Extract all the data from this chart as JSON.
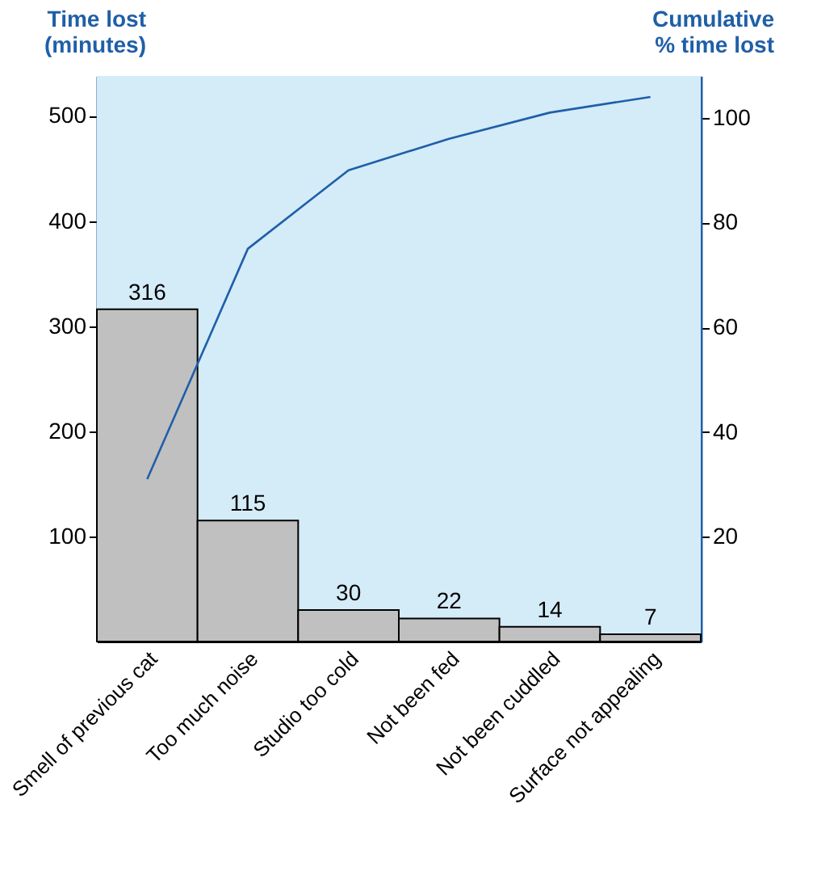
{
  "chart_data": {
    "type": "bar",
    "ylabel": "Time lost\n(minutes)",
    "y2label": "Cumulative\n% time lost",
    "categories": [
      "Smell of previous cat",
      "Too much noise",
      "Studio too cold",
      "Not been fed",
      "Not been cuddled",
      "Surface not appealing"
    ],
    "series": [
      {
        "color": "#c0c0c0",
        "values": [
          316,
          115,
          30,
          22,
          14,
          7
        ],
        "value_labels": [
          "316",
          "115",
          "30",
          "22",
          "14",
          "7"
        ]
      },
      {
        "type": "line",
        "axis": "y2",
        "color": "#1f5fa8",
        "values": [
          31,
          75,
          90,
          96,
          101,
          104
        ]
      }
    ],
    "ylim": [
      0,
      538
    ],
    "yticks": [
      100,
      200,
      300,
      400,
      500
    ],
    "y2lim": [
      0,
      108
    ],
    "y2ticks": [
      20,
      40,
      60,
      80,
      100
    ],
    "marker": "none",
    "line_style": "solid"
  }
}
